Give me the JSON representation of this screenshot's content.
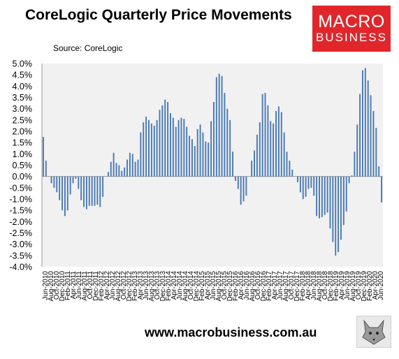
{
  "header": {
    "title": "CoreLogic Quarterly Price Movements",
    "source": "Source: CoreLogic"
  },
  "logo": {
    "line1": "MACRO",
    "line2": "BUSINESS",
    "color": "#e0262b"
  },
  "footer": {
    "url": "www.macrobusiness.com.au",
    "icon": "wolf-logo-icon"
  },
  "chart_data": {
    "type": "bar",
    "title": "",
    "xlabel": "",
    "ylabel": "",
    "ylim": [
      -4.0,
      5.0
    ],
    "y_ticks": [
      "5.0%",
      "4.5%",
      "4.0%",
      "3.5%",
      "3.0%",
      "2.5%",
      "2.0%",
      "1.5%",
      "1.0%",
      "0.5%",
      "0.0%",
      "-0.5%",
      "-1.0%",
      "-1.5%",
      "-2.0%",
      "-2.5%",
      "-3.0%",
      "-3.5%",
      "-4.0%"
    ],
    "x_tick_labels": [
      "Jun-2010",
      "Aug-2010",
      "Oct-2010",
      "Dec-2010",
      "Feb-2011",
      "Apr-2011",
      "Jun-2011",
      "Aug-2011",
      "Oct-2011",
      "Dec-2011",
      "Feb-2012",
      "Apr-2012",
      "Jun-2012",
      "Aug-2012",
      "Oct-2012",
      "Dec-2012",
      "Feb-2013",
      "Apr-2013",
      "Jun-2013",
      "Aug-2013",
      "Oct-2013",
      "Dec-2013",
      "Feb-2014",
      "Apr-2014",
      "Jun-2014",
      "Aug-2014",
      "Oct-2014",
      "Dec-2014",
      "Feb-2015",
      "Apr-2015",
      "Jun-2015",
      "Aug-2015",
      "Oct-2015",
      "Dec-2015",
      "Feb-2016",
      "Apr-2016",
      "Jun-2016",
      "Aug-2016",
      "Oct-2016",
      "Dec-2016",
      "Feb-2017",
      "Apr-2017",
      "Jun-2017",
      "Aug-2017",
      "Oct-2017",
      "Dec-2017",
      "Feb-2018",
      "Apr-2018",
      "Jun-2018",
      "Aug-2018",
      "Oct-2018",
      "Dec-2018",
      "Feb-2019",
      "Apr-2019",
      "Jun-2019",
      "Aug-2019",
      "Oct-2019",
      "Dec-2019",
      "Feb-2020",
      "Apr-2020",
      "Jun-2020"
    ],
    "grid": false,
    "legend": "none",
    "colors": {
      "bar": "#4a7ab5",
      "plot_bg": "#f1f1f1",
      "axis": "#999999"
    },
    "series": [
      {
        "values": [
          1.75,
          0.7,
          0,
          -0.3,
          -0.5,
          -0.7,
          -1.05,
          -1.5,
          -1.75,
          -1.5,
          -0.8,
          -0.3,
          -0.1,
          -0.55,
          -1.05,
          -1.35,
          -1.45,
          -1.3,
          -1.3,
          -1.3,
          -1.25,
          -1.35,
          -0.9,
          0,
          0.2,
          0.65,
          1.05,
          0.6,
          0.5,
          0.25,
          0.4,
          0.75,
          1.05,
          1.0,
          0.65,
          0.75,
          1.95,
          2.4,
          2.65,
          2.5,
          2.35,
          2.25,
          2.5,
          2.95,
          3.15,
          3.4,
          3.3,
          2.8,
          2.6,
          2.2,
          2.5,
          2.6,
          2.55,
          2.2,
          1.8,
          1.65,
          1.35,
          2.1,
          2.3,
          1.95,
          1.55,
          1.5,
          2.45,
          3.3,
          4.4,
          4.55,
          4.45,
          3.7,
          3.0,
          2.5,
          1.1,
          -0.2,
          -0.55,
          -1.25,
          -1.1,
          -0.85,
          0,
          0.7,
          1.15,
          1.85,
          2.4,
          3.65,
          3.7,
          3.15,
          2.45,
          2.35,
          2.9,
          3.1,
          2.85,
          1.95,
          1.1,
          0.7,
          0.3,
          0,
          -0.25,
          -0.7,
          -1.0,
          -0.9,
          -0.55,
          -0.5,
          -0.85,
          -1.75,
          -1.85,
          -1.8,
          -1.7,
          -1.6,
          -2.3,
          -2.9,
          -3.5,
          -3.35,
          -2.8,
          -2.15,
          -1.55,
          -0.3,
          0.05,
          1.1,
          2.3,
          3.65,
          4.7,
          4.8,
          4.25,
          3.6,
          2.9,
          2.15,
          0.45,
          -1.15
        ]
      }
    ]
  }
}
